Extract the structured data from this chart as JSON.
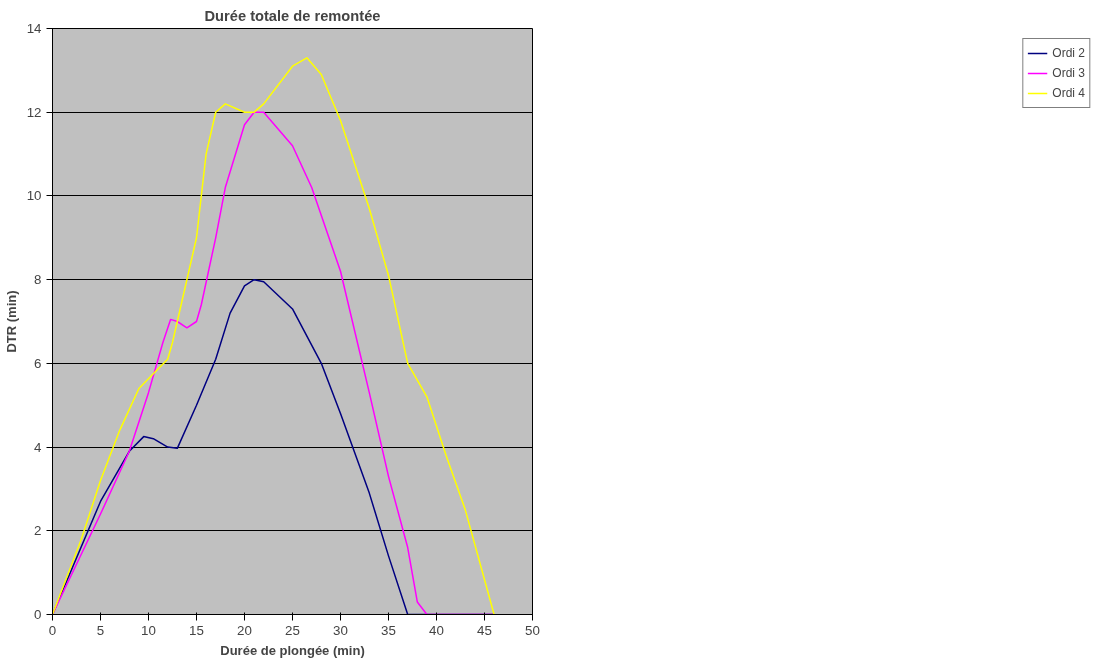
{
  "chart_data": {
    "type": "line",
    "title": "Durée totale de remontée",
    "xlabel": "Durée de plongée (min)",
    "ylabel": "DTR (min)",
    "xlim": [
      0,
      50
    ],
    "xticks": [
      0,
      5,
      10,
      15,
      20,
      25,
      30,
      35,
      40,
      45,
      50
    ],
    "ylim": [
      0,
      14
    ],
    "yticks": [
      0,
      2,
      4,
      6,
      8,
      10,
      12,
      14
    ],
    "grid": "y",
    "legend": "right",
    "marker": "none",
    "line_style": "solid",
    "series": [
      {
        "name": "Ordi 2",
        "color": "#000080",
        "x": [
          0,
          5,
          8,
          9.5,
          10.5,
          12,
          13,
          15,
          17,
          18.5,
          20,
          21,
          22,
          25,
          28,
          30,
          33,
          35,
          37,
          40,
          46
        ],
        "values": [
          0,
          2.7,
          3.9,
          4.25,
          4.2,
          4.0,
          3.97,
          5.0,
          6.1,
          7.2,
          7.85,
          8.0,
          7.95,
          7.3,
          6.0,
          4.8,
          2.9,
          1.4,
          0,
          0,
          0
        ]
      },
      {
        "name": "Ordi 3",
        "color": "#ff00ff",
        "x": [
          0,
          5,
          8,
          10,
          11.5,
          12.3,
          13,
          14,
          15,
          15.5,
          17,
          18,
          20,
          21,
          22,
          25,
          27,
          30,
          33,
          35,
          37,
          38,
          39,
          46
        ],
        "values": [
          0,
          2.4,
          3.9,
          5.3,
          6.5,
          7.05,
          7.0,
          6.85,
          7.0,
          7.4,
          9.0,
          10.2,
          11.7,
          12.0,
          12.0,
          11.2,
          10.2,
          8.2,
          5.3,
          3.3,
          1.6,
          0.3,
          0,
          0
        ]
      },
      {
        "name": "Ordi 4",
        "color": "#ffff00",
        "x": [
          0,
          3,
          5,
          7,
          9,
          10.5,
          12,
          12.5,
          13,
          15,
          16,
          17,
          18,
          20,
          21,
          22,
          25,
          26.5,
          28,
          30,
          33,
          35,
          37,
          39,
          41,
          43,
          46
        ],
        "values": [
          0,
          1.8,
          3.2,
          4.4,
          5.4,
          5.75,
          6.1,
          6.5,
          7.0,
          9.0,
          11.0,
          12.0,
          12.2,
          12.0,
          12.0,
          12.2,
          13.1,
          13.3,
          12.9,
          11.8,
          9.7,
          8.1,
          6.0,
          5.2,
          3.8,
          2.5,
          0
        ]
      }
    ]
  }
}
